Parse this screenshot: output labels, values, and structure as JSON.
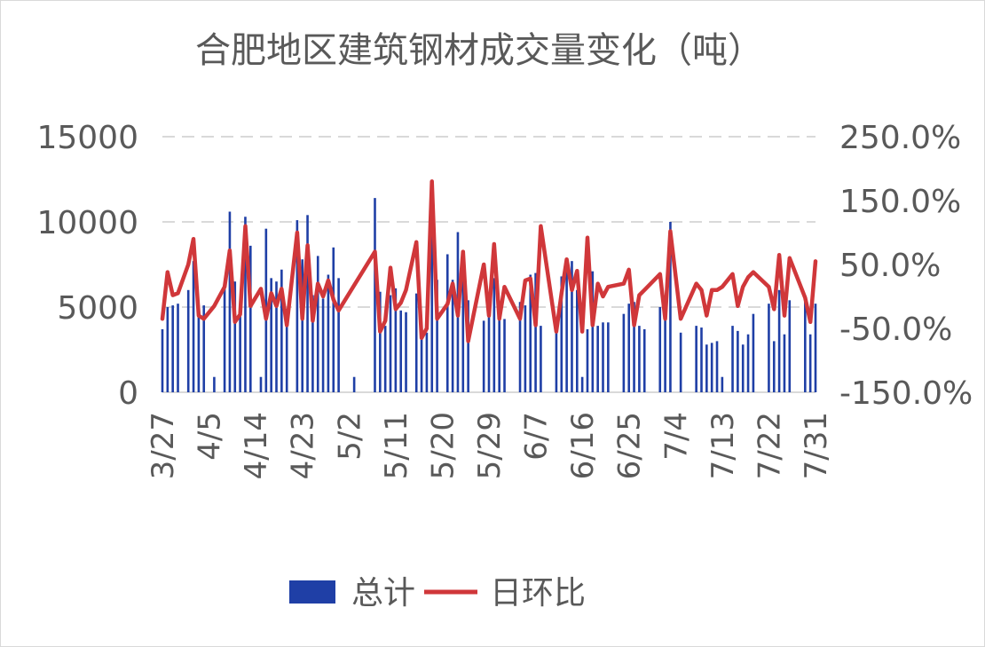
{
  "chart_data": {
    "type": "bar",
    "title": "合肥地区建筑钢材成交量变化（吨）",
    "y_left": {
      "min": 0,
      "max": 15000,
      "ticks": [
        0,
        5000,
        10000,
        15000
      ]
    },
    "y_right": {
      "min": -150,
      "max": 250,
      "ticks": [
        "-150.0%",
        "-50.0%",
        "50.0%",
        "150.0%",
        "250.0%"
      ]
    },
    "x_range": [
      "3/27",
      "7/31"
    ],
    "x_ticks": [
      "3/27",
      "4/5",
      "4/14",
      "4/23",
      "5/2",
      "5/11",
      "5/20",
      "5/29",
      "6/7",
      "6/16",
      "6/25",
      "7/4",
      "7/13",
      "7/22",
      "7/31"
    ],
    "grid": true,
    "legend_position": "bottom",
    "series": [
      {
        "name": "总计",
        "kind": "bar",
        "color": "#1f3fa6",
        "points": [
          [
            "3/27",
            3700
          ],
          [
            "3/28",
            5000
          ],
          [
            "3/29",
            5100
          ],
          [
            "3/30",
            5200
          ],
          [
            "4/1",
            6000
          ],
          [
            "4/2",
            7700
          ],
          [
            "4/3",
            5100
          ],
          [
            "4/4",
            5100
          ],
          [
            "4/6",
            900
          ],
          [
            "4/8",
            6200
          ],
          [
            "4/9",
            10600
          ],
          [
            "4/10",
            6500
          ],
          [
            "4/11",
            5000
          ],
          [
            "4/12",
            10300
          ],
          [
            "4/13",
            8600
          ],
          [
            "4/15",
            900
          ],
          [
            "4/16",
            9600
          ],
          [
            "4/17",
            6700
          ],
          [
            "4/18",
            6500
          ],
          [
            "4/19",
            7200
          ],
          [
            "4/20",
            4900
          ],
          [
            "4/22",
            10100
          ],
          [
            "4/23",
            7800
          ],
          [
            "4/24",
            10400
          ],
          [
            "4/25",
            5700
          ],
          [
            "4/26",
            8000
          ],
          [
            "4/27",
            5500
          ],
          [
            "4/28",
            6900
          ],
          [
            "4/29",
            8500
          ],
          [
            "4/30",
            6700
          ],
          [
            "5/3",
            900
          ],
          [
            "5/7",
            11400
          ],
          [
            "5/8",
            5900
          ],
          [
            "5/9",
            3900
          ],
          [
            "5/10",
            5700
          ],
          [
            "5/11",
            6100
          ],
          [
            "5/12",
            4800
          ],
          [
            "5/13",
            4700
          ],
          [
            "5/15",
            5800
          ],
          [
            "5/16",
            4000
          ],
          [
            "5/17",
            3500
          ],
          [
            "5/18",
            12000
          ],
          [
            "5/19",
            6600
          ],
          [
            "5/21",
            8100
          ],
          [
            "5/22",
            6600
          ],
          [
            "5/23",
            9400
          ],
          [
            "5/24",
            7700
          ],
          [
            "5/25",
            5400
          ],
          [
            "5/28",
            4200
          ],
          [
            "5/29",
            5700
          ],
          [
            "5/30",
            6700
          ],
          [
            "5/31",
            4800
          ],
          [
            "6/1",
            4300
          ],
          [
            "6/4",
            5300
          ],
          [
            "6/5",
            5100
          ],
          [
            "6/6",
            6900
          ],
          [
            "6/7",
            7000
          ],
          [
            "6/8",
            3900
          ],
          [
            "6/11",
            4300
          ],
          [
            "6/12",
            6800
          ],
          [
            "6/13",
            7500
          ],
          [
            "6/14",
            7700
          ],
          [
            "6/15",
            6000
          ],
          [
            "6/16",
            900
          ],
          [
            "6/17",
            3700
          ],
          [
            "6/18",
            7100
          ],
          [
            "6/19",
            3900
          ],
          [
            "6/20",
            4100
          ],
          [
            "6/21",
            4100
          ],
          [
            "6/24",
            4600
          ],
          [
            "6/25",
            5200
          ],
          [
            "6/26",
            5300
          ],
          [
            "6/27",
            3900
          ],
          [
            "6/28",
            3700
          ],
          [
            "7/1",
            5000
          ],
          [
            "7/2",
            4300
          ],
          [
            "7/3",
            10000
          ],
          [
            "7/5",
            3500
          ],
          [
            "7/8",
            3900
          ],
          [
            "7/9",
            3800
          ],
          [
            "7/10",
            2800
          ],
          [
            "7/11",
            2900
          ],
          [
            "7/12",
            3000
          ],
          [
            "7/13",
            900
          ],
          [
            "7/15",
            3900
          ],
          [
            "7/16",
            3600
          ],
          [
            "7/17",
            2800
          ],
          [
            "7/18",
            3400
          ],
          [
            "7/19",
            4600
          ],
          [
            "7/22",
            5200
          ],
          [
            "7/23",
            3000
          ],
          [
            "7/24",
            6000
          ],
          [
            "7/25",
            3400
          ],
          [
            "7/26",
            5400
          ],
          [
            "7/29",
            5600
          ],
          [
            "7/30",
            3400
          ],
          [
            "7/31",
            5200
          ]
        ]
      },
      {
        "name": "日环比",
        "kind": "line",
        "color": "#d0373a",
        "axis": "right",
        "points": [
          [
            "3/27",
            -35
          ],
          [
            "3/28",
            38
          ],
          [
            "3/29",
            2
          ],
          [
            "3/30",
            5
          ],
          [
            "4/1",
            50
          ],
          [
            "4/2",
            90
          ],
          [
            "4/3",
            -30
          ],
          [
            "4/4",
            -35
          ],
          [
            "4/6",
            -15
          ],
          [
            "4/8",
            15
          ],
          [
            "4/9",
            72
          ],
          [
            "4/10",
            -40
          ],
          [
            "4/11",
            -28
          ],
          [
            "4/12",
            110
          ],
          [
            "4/13",
            -15
          ],
          [
            "4/15",
            12
          ],
          [
            "4/16",
            -35
          ],
          [
            "4/17",
            5
          ],
          [
            "4/18",
            -15
          ],
          [
            "4/19",
            12
          ],
          [
            "4/20",
            -45
          ],
          [
            "4/22",
            100
          ],
          [
            "4/23",
            -35
          ],
          [
            "4/24",
            80
          ],
          [
            "4/25",
            -38
          ],
          [
            "4/26",
            20
          ],
          [
            "4/27",
            0
          ],
          [
            "4/28",
            25
          ],
          [
            "4/29",
            -5
          ],
          [
            "4/30",
            -22
          ],
          [
            "5/7",
            70
          ],
          [
            "5/8",
            -55
          ],
          [
            "5/9",
            -38
          ],
          [
            "5/10",
            45
          ],
          [
            "5/11",
            -20
          ],
          [
            "5/12",
            -10
          ],
          [
            "5/13",
            10
          ],
          [
            "5/15",
            85
          ],
          [
            "5/16",
            -65
          ],
          [
            "5/17",
            -50
          ],
          [
            "5/18",
            180
          ],
          [
            "5/19",
            -35
          ],
          [
            "5/21",
            -12
          ],
          [
            "5/22",
            20
          ],
          [
            "5/23",
            -30
          ],
          [
            "5/24",
            70
          ],
          [
            "5/25",
            -70
          ],
          [
            "5/28",
            50
          ],
          [
            "5/29",
            -30
          ],
          [
            "5/30",
            82
          ],
          [
            "5/31",
            -35
          ],
          [
            "6/1",
            15
          ],
          [
            "6/4",
            -35
          ],
          [
            "6/5",
            25
          ],
          [
            "6/6",
            28
          ],
          [
            "6/7",
            -45
          ],
          [
            "6/8",
            110
          ],
          [
            "6/11",
            -55
          ],
          [
            "6/12",
            5
          ],
          [
            "6/13",
            58
          ],
          [
            "6/14",
            10
          ],
          [
            "6/15",
            40
          ],
          [
            "6/16",
            -55
          ],
          [
            "6/17",
            92
          ],
          [
            "6/18",
            -45
          ],
          [
            "6/19",
            20
          ],
          [
            "6/20",
            0
          ],
          [
            "6/21",
            15
          ],
          [
            "6/24",
            20
          ],
          [
            "6/25",
            42
          ],
          [
            "6/26",
            -45
          ],
          [
            "6/27",
            2
          ],
          [
            "6/28",
            10
          ],
          [
            "7/1",
            35
          ],
          [
            "7/2",
            -35
          ],
          [
            "7/3",
            102
          ],
          [
            "7/5",
            -35
          ],
          [
            "7/8",
            20
          ],
          [
            "7/9",
            10
          ],
          [
            "7/10",
            -30
          ],
          [
            "7/11",
            10
          ],
          [
            "7/12",
            10
          ],
          [
            "7/13",
            15
          ],
          [
            "7/15",
            35
          ],
          [
            "7/16",
            -15
          ],
          [
            "7/17",
            15
          ],
          [
            "7/18",
            30
          ],
          [
            "7/19",
            38
          ],
          [
            "7/22",
            15
          ],
          [
            "7/23",
            -20
          ],
          [
            "7/24",
            65
          ],
          [
            "7/25",
            -30
          ],
          [
            "7/26",
            60
          ],
          [
            "7/29",
            -2
          ],
          [
            "7/30",
            -40
          ],
          [
            "7/31",
            55
          ]
        ]
      }
    ]
  }
}
